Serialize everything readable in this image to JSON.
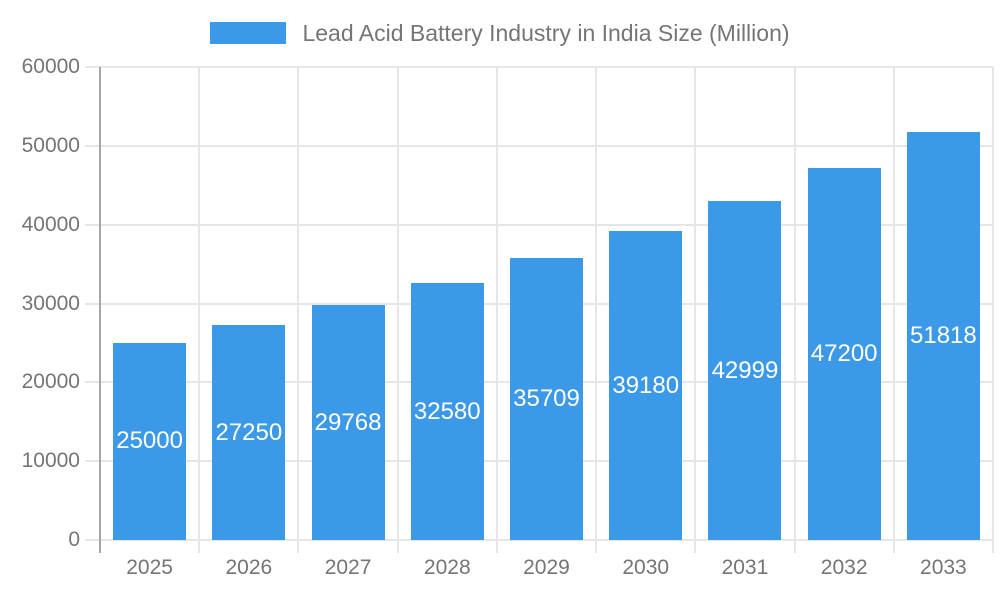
{
  "legend": {
    "label": "Lead Acid Battery Industry in India Size (Million)",
    "position": "top"
  },
  "chart_data": {
    "type": "bar",
    "title": "Lead Acid Battery Industry in India Size (Million)",
    "categories": [
      "2025",
      "2026",
      "2027",
      "2028",
      "2029",
      "2030",
      "2031",
      "2032",
      "2033"
    ],
    "series": [
      {
        "name": "Lead Acid Battery Industry in India Size (Million)",
        "values": [
          25000,
          27250,
          29768,
          32580,
          35709,
          39180,
          42999,
          47200,
          51818
        ]
      }
    ],
    "value_labels": [
      "25000",
      "27250",
      "29768",
      "32580",
      "35709",
      "39180",
      "42999",
      "47200",
      "51818"
    ],
    "xlabel": "",
    "ylabel": "",
    "ylim": [
      0,
      60000
    ],
    "ytick_interval": 10000,
    "ytick_labels": [
      "0",
      "10000",
      "20000",
      "30000",
      "40000",
      "50000",
      "60000"
    ],
    "grid": true,
    "legend_position": "top",
    "value_label_position": "inside-center",
    "colors": {
      "bar": "#3B99E8",
      "grid": "#E6E6E6",
      "axis": "#A6A6A6",
      "tick_label": "#757575",
      "value_label": "#FFFFFF",
      "background": "#FFFFFF"
    }
  }
}
